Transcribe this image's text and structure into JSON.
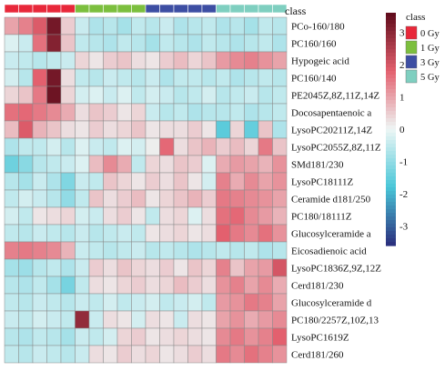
{
  "chart_data": {
    "type": "heatmap",
    "annotation_label": "class",
    "legend_title": "class",
    "legend_position": "right",
    "groups": [
      {
        "label": "0 Gy",
        "color": "#e8283a",
        "count": 5
      },
      {
        "label": "1 Gy",
        "color": "#7cbf3e",
        "count": 5
      },
      {
        "label": "3 Gy",
        "color": "#3d4ea3",
        "count": 5
      },
      {
        "label": "5 Gy",
        "color": "#7fcfc0",
        "count": 5
      }
    ],
    "rows": [
      "PCo-160/180",
      "PC160/160",
      "Hypogeic acid",
      "PC160/140",
      "PE2045Z,8Z,11Z,14Z",
      "Docosapentaenoic a",
      "LysoPC20211Z,14Z",
      "LysoPC2055Z,8Z,11Z",
      "SMd181/230",
      "LysoPC18111Z",
      "Ceramide d181/250",
      "PC180/18111Z",
      "Glucosylceramide a",
      "Eicosadienoic acid",
      "LysoPC1836Z,9Z,12Z",
      "Cerd181/230",
      "Glucosylceramide d",
      "PC180/2257Z,10Z,13",
      "LysoPC1619Z",
      "Cerd181/260"
    ],
    "values": [
      [
        1.0,
        1.4,
        1.9,
        3.3,
        0.5,
        -0.4,
        -0.7,
        -0.6,
        -0.8,
        -0.5,
        -0.6,
        -0.4,
        -0.7,
        -0.6,
        -0.5,
        -0.7,
        -0.6,
        -0.8,
        -0.5,
        -0.6
      ],
      [
        -0.2,
        -0.4,
        1.6,
        3.1,
        0.6,
        -0.5,
        -0.6,
        -0.7,
        -0.5,
        -0.6,
        -0.8,
        -0.5,
        -0.6,
        -0.7,
        -0.5,
        -0.6,
        -0.7,
        -0.6,
        -0.5,
        -0.7
      ],
      [
        -0.4,
        -0.5,
        -0.6,
        -0.5,
        -0.4,
        0.4,
        0.2,
        0.5,
        0.6,
        0.3,
        0.2,
        0.5,
        0.7,
        0.4,
        0.6,
        1.1,
        1.3,
        1.4,
        1.2,
        1.0
      ],
      [
        -0.3,
        -0.6,
        1.8,
        3.3,
        0.3,
        -0.5,
        -0.6,
        -0.4,
        -0.5,
        -0.6,
        -0.4,
        -0.7,
        -0.5,
        -0.5,
        -0.6,
        -0.5,
        -0.7,
        -0.6,
        -0.5,
        -0.6
      ],
      [
        0.4,
        0.6,
        1.5,
        3.4,
        0.4,
        -0.3,
        -0.2,
        -0.4,
        -0.2,
        -0.5,
        -0.3,
        -0.4,
        -0.6,
        -0.5,
        -0.3,
        -0.6,
        -0.5,
        -0.4,
        -0.6,
        -0.5
      ],
      [
        1.6,
        1.7,
        1.5,
        1.3,
        0.9,
        0.3,
        0.6,
        0.5,
        0.2,
        0.4,
        -0.4,
        -0.6,
        -0.5,
        -0.7,
        -0.6,
        -0.6,
        -0.5,
        -0.7,
        -0.6,
        -0.5
      ],
      [
        0.7,
        1.9,
        0.8,
        0.6,
        0.3,
        0.2,
        0.5,
        0.3,
        0.4,
        0.6,
        0.2,
        0.3,
        0.3,
        0.5,
        0.2,
        -1.6,
        0.4,
        -1.5,
        0.6,
        -0.7
      ],
      [
        -0.7,
        -0.5,
        -0.5,
        -0.3,
        -0.6,
        -0.2,
        -0.4,
        -0.5,
        -0.2,
        -0.3,
        0.1,
        1.7,
        0.3,
        0.6,
        0.8,
        0.5,
        0.7,
        0.4,
        1.5,
        0.6
      ],
      [
        -1.4,
        -1.1,
        -0.6,
        -0.5,
        -0.4,
        -0.2,
        0.7,
        1.3,
        0.9,
        -0.5,
        0.4,
        0.3,
        0.6,
        0.5,
        -0.2,
        0.9,
        1.1,
        1.0,
        0.8,
        1.2
      ],
      [
        -0.6,
        -0.8,
        -0.4,
        -0.7,
        -1.2,
        -0.4,
        -0.5,
        0.6,
        0.4,
        0.2,
        0.5,
        0.3,
        0.6,
        0.2,
        -0.3,
        1.4,
        0.9,
        1.3,
        1.0,
        1.2
      ],
      [
        -0.5,
        -0.3,
        -0.4,
        -0.6,
        -1.0,
        -0.5,
        0.6,
        0.3,
        0.5,
        0.7,
        0.2,
        0.4,
        0.6,
        0.8,
        0.5,
        1.5,
        1.4,
        1.3,
        1.2,
        1.0
      ],
      [
        -0.3,
        -0.5,
        0.2,
        0.3,
        0.4,
        -0.3,
        -0.4,
        0.3,
        0.5,
        0.2,
        -0.5,
        0.3,
        0.4,
        -0.2,
        0.3,
        1.6,
        1.7,
        1.3,
        1.1,
        0.8
      ],
      [
        -0.5,
        -0.6,
        -0.4,
        -0.5,
        -0.6,
        -0.4,
        -0.6,
        -0.5,
        -0.4,
        -0.5,
        0.2,
        0.3,
        0.4,
        0.2,
        0.3,
        1.8,
        1.5,
        1.3,
        1.6,
        1.2
      ],
      [
        1.4,
        1.5,
        1.4,
        1.3,
        0.8,
        -0.4,
        -0.5,
        -0.6,
        -0.5,
        -0.4,
        -0.6,
        -0.5,
        -0.6,
        -0.7,
        -0.6,
        -0.5,
        -0.6,
        -0.5,
        -0.7,
        -0.6
      ],
      [
        -0.8,
        -0.9,
        -0.6,
        -0.5,
        -0.7,
        -0.4,
        0.5,
        0.3,
        0.6,
        0.4,
        0.3,
        0.5,
        0.2,
        0.6,
        0.4,
        1.4,
        0.6,
        1.0,
        1.1,
        2.0
      ],
      [
        -0.6,
        -0.7,
        -0.5,
        -0.8,
        -1.3,
        -0.5,
        0.3,
        0.2,
        0.4,
        0.5,
        0.3,
        0.4,
        0.7,
        0.5,
        0.3,
        1.2,
        1.4,
        1.0,
        1.3,
        0.9
      ],
      [
        -0.5,
        -0.6,
        -0.4,
        -0.5,
        -0.6,
        -0.4,
        -0.5,
        -0.3,
        -0.5,
        -0.4,
        -0.3,
        -0.5,
        -0.4,
        -0.3,
        -0.5,
        1.1,
        1.2,
        1.5,
        1.4,
        1.0
      ],
      [
        -0.4,
        -0.5,
        -0.3,
        -0.4,
        -0.5,
        2.9,
        -0.4,
        0.3,
        0.2,
        -0.3,
        0.3,
        0.2,
        -0.4,
        0.3,
        0.2,
        1.0,
        1.2,
        0.9,
        1.1,
        1.3
      ],
      [
        -0.6,
        -0.7,
        -0.5,
        -0.6,
        -0.8,
        -0.4,
        -0.5,
        -0.3,
        0.4,
        0.5,
        0.2,
        0.3,
        0.4,
        0.3,
        0.2,
        1.3,
        1.5,
        1.2,
        1.4,
        1.8
      ],
      [
        -0.5,
        -0.6,
        -0.4,
        -0.5,
        -0.6,
        -0.4,
        0.3,
        0.2,
        0.5,
        0.3,
        0.4,
        0.2,
        0.3,
        0.5,
        0.3,
        1.5,
        1.3,
        1.6,
        1.4,
        1.2
      ]
    ],
    "color_scale": {
      "min": -3.6,
      "max": 3.6,
      "colors": [
        "#2a2d7c",
        "#49c6d8",
        "#eef6f5",
        "#e3606e",
        "#5e0a1a"
      ],
      "ticks": [
        -3,
        -2,
        -1,
        0,
        1,
        2,
        3
      ]
    }
  }
}
